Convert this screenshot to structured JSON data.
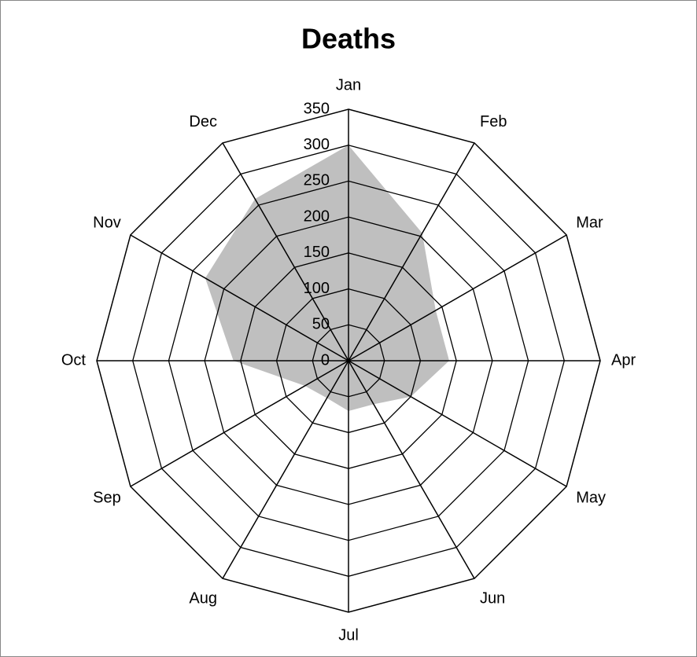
{
  "chart_data": {
    "type": "radar",
    "title": "Deaths",
    "categories": [
      "Jan",
      "Feb",
      "Mar",
      "Apr",
      "May",
      "Jun",
      "Jul",
      "Aug",
      "Sep",
      "Oct",
      "Nov",
      "Dec"
    ],
    "values": [
      300,
      205,
      140,
      140,
      100,
      70,
      70,
      60,
      70,
      160,
      230,
      260
    ],
    "color": "#bfbfbf",
    "ylim": [
      0,
      350
    ],
    "yticks": [
      0,
      50,
      100,
      150,
      200,
      250,
      300,
      350
    ],
    "grid": true
  }
}
